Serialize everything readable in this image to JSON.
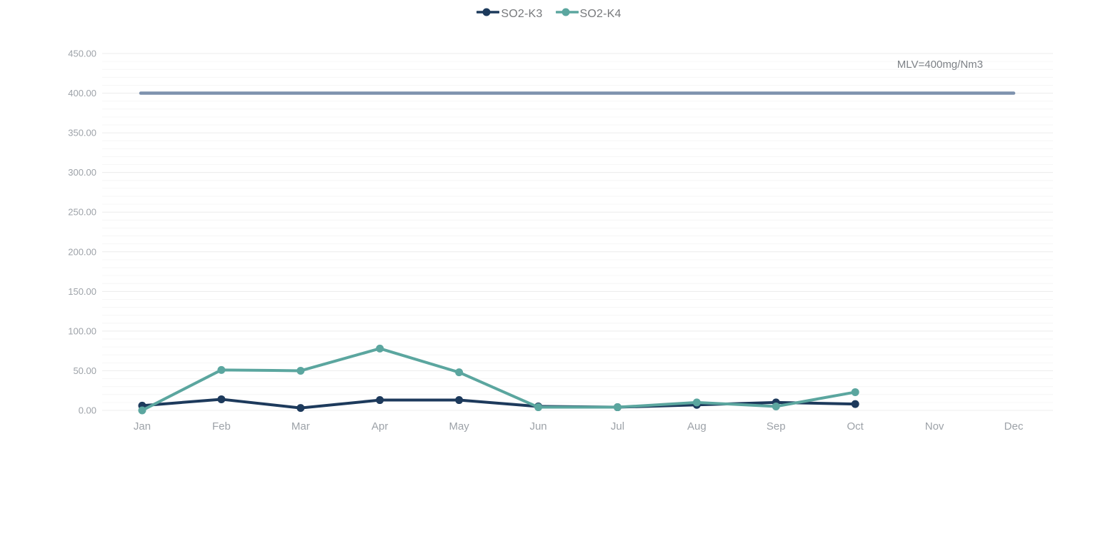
{
  "legend": {
    "items": [
      {
        "label": "SO2-K3",
        "color": "#1d3a5c"
      },
      {
        "label": "SO2-K4",
        "color": "#5ba69f"
      }
    ]
  },
  "chart_data": {
    "type": "line",
    "categories": [
      "Jan",
      "Feb",
      "Mar",
      "Apr",
      "May",
      "Jun",
      "Jul",
      "Aug",
      "Sep",
      "Oct",
      "Nov",
      "Dec"
    ],
    "series": [
      {
        "name": "SO2-K3",
        "color": "#1d3a5c",
        "values": [
          6,
          14,
          3,
          13,
          13,
          5,
          4,
          7,
          10,
          8,
          null,
          null
        ]
      },
      {
        "name": "SO2-K4",
        "color": "#5ba69f",
        "values": [
          0,
          51,
          50,
          78,
          48,
          4,
          4,
          10,
          5,
          23,
          null,
          null
        ]
      }
    ],
    "reference_line": {
      "label": "MLV=400mg/Nm3",
      "value": 400,
      "color": "#7e92ae"
    },
    "title": "",
    "xlabel": "",
    "ylabel": "",
    "ylim": [
      0,
      450
    ],
    "y_major_step": 50,
    "y_minor_step": 10,
    "y_ticks": [
      "450.00",
      "400.00",
      "350.00",
      "300.00",
      "250.00",
      "200.00",
      "150.00",
      "100.00",
      "50.00",
      "0.00"
    ],
    "grid": true,
    "legend_position": "top",
    "colors": {
      "grid_minor": "#f6f6f6",
      "grid_major": "#ececec",
      "axis_label": "#9da2a8",
      "annotation": "#7d8186"
    }
  }
}
